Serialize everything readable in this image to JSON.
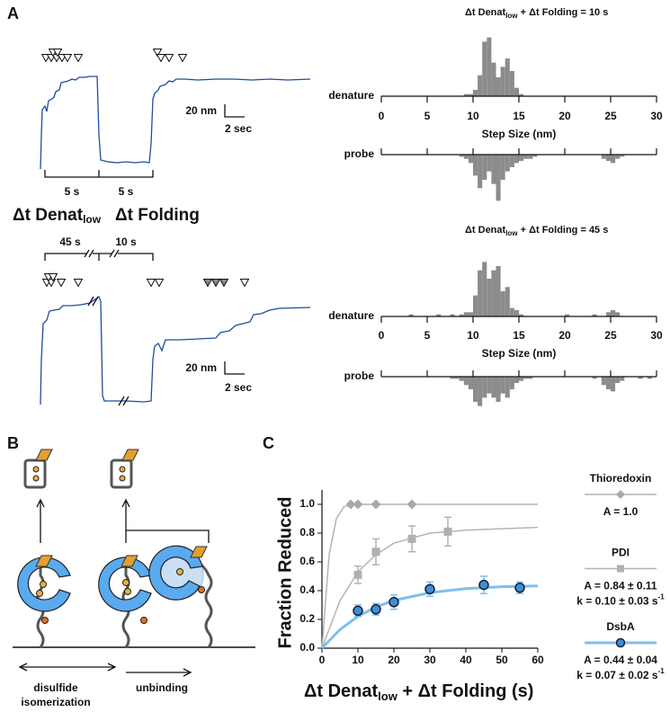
{
  "panel_labels": {
    "a": "A",
    "b": "B",
    "c": "C"
  },
  "traces": {
    "top": {
      "bracket_labels": [
        "5 s",
        "5 s"
      ],
      "scale_y": "20 nm",
      "scale_x": "2 sec",
      "interval_labels": {
        "denat": [
          "Δt Denat",
          "low"
        ],
        "folding": "Δt Folding"
      }
    },
    "bottom": {
      "bracket_labels": [
        "45 s",
        "10 s"
      ],
      "scale_y": "20 nm",
      "scale_x": "2 sec"
    }
  },
  "diagram": {
    "left_label": [
      "disulfide",
      "isomerization"
    ],
    "right_label": "unbinding"
  },
  "chart_data": [
    {
      "type": "histogram",
      "title_parts": [
        "Δt Denat",
        "low",
        " + Δt Folding = 10 s"
      ],
      "xlabel": "Step Size (nm)",
      "xlim": [
        0,
        30
      ],
      "xticks": [
        0,
        5,
        10,
        15,
        20,
        25,
        30
      ],
      "ylim": [
        0,
        30
      ],
      "color": "#8c8c8c",
      "bins": [
        0,
        0.5,
        1,
        1.5,
        2,
        2.5,
        3,
        3.5,
        4,
        4.5,
        5,
        5.5,
        6,
        6.5,
        7,
        7.5,
        8,
        8.5,
        9,
        9.5,
        10,
        10.5,
        11,
        11.5,
        12,
        12.5,
        13,
        13.5,
        14,
        14.5,
        15,
        15.5,
        16,
        16.5,
        17,
        17.5,
        18,
        18.5,
        19,
        19.5,
        20,
        20.5,
        21,
        21.5,
        22,
        22.5,
        23,
        23.5,
        24,
        24.5,
        25,
        25.5,
        26,
        26.5,
        27,
        27.5,
        28,
        28.5,
        29,
        29.5,
        30
      ],
      "series": [
        {
          "name": "denature",
          "values": [
            0,
            0,
            0,
            0,
            0,
            0,
            0,
            0,
            0,
            0,
            0,
            0,
            0,
            0,
            0,
            0,
            0,
            0,
            1,
            1,
            3,
            10,
            26,
            28,
            16,
            9,
            14,
            18,
            12,
            4,
            1,
            0,
            0,
            0,
            0,
            0,
            0,
            0,
            0,
            0,
            0,
            0,
            0,
            0,
            0,
            0,
            0,
            0,
            0,
            0,
            0,
            0,
            0,
            0,
            0,
            0,
            0,
            0,
            0,
            0
          ]
        },
        {
          "name": "probe",
          "values": [
            0,
            0,
            0,
            0,
            0,
            0,
            0,
            0,
            0,
            0,
            0,
            0,
            0,
            0,
            0,
            0,
            0,
            1,
            2,
            4,
            10,
            16,
            12,
            8,
            14,
            22,
            12,
            8,
            6,
            4,
            3,
            2,
            2,
            1,
            0,
            0,
            0,
            0,
            0,
            0,
            0,
            0,
            0,
            0,
            0,
            0,
            0,
            0,
            2,
            3,
            4,
            2,
            1,
            0,
            0,
            0,
            0,
            0,
            0,
            0
          ]
        }
      ]
    },
    {
      "type": "histogram",
      "title_parts": [
        "Δt Denat",
        "low",
        " + Δt Folding = 45 s"
      ],
      "xlabel": "Step Size (nm)",
      "xlim": [
        0,
        30
      ],
      "xticks": [
        0,
        5,
        10,
        15,
        20,
        25,
        30
      ],
      "ylim": [
        0,
        30
      ],
      "color": "#8c8c8c",
      "bins": [
        0,
        0.5,
        1,
        1.5,
        2,
        2.5,
        3,
        3.5,
        4,
        4.5,
        5,
        5.5,
        6,
        6.5,
        7,
        7.5,
        8,
        8.5,
        9,
        9.5,
        10,
        10.5,
        11,
        11.5,
        12,
        12.5,
        13,
        13.5,
        14,
        14.5,
        15,
        15.5,
        16,
        16.5,
        17,
        17.5,
        18,
        18.5,
        19,
        19.5,
        20,
        20.5,
        21,
        21.5,
        22,
        22.5,
        23,
        23.5,
        24,
        24.5,
        25,
        25.5,
        26,
        26.5,
        27,
        27.5,
        28,
        28.5,
        29,
        29.5,
        30
      ],
      "series": [
        {
          "name": "denature",
          "values": [
            0,
            0,
            0,
            0,
            0,
            0,
            1,
            0,
            0,
            0,
            0,
            0,
            1,
            0,
            0,
            1,
            0,
            1,
            2,
            2,
            10,
            22,
            26,
            18,
            22,
            24,
            12,
            14,
            4,
            3,
            1,
            0,
            0,
            0,
            0,
            0,
            0,
            0,
            0,
            0,
            1,
            0,
            0,
            0,
            0,
            0,
            1,
            0,
            0,
            2,
            3,
            2,
            0,
            0,
            0,
            0,
            0,
            0,
            0,
            0
          ]
        },
        {
          "name": "probe",
          "values": [
            0,
            0,
            0,
            0,
            0,
            0,
            0,
            0,
            0,
            0,
            0,
            0,
            0,
            0,
            0,
            1,
            1,
            2,
            4,
            6,
            12,
            14,
            10,
            8,
            10,
            12,
            8,
            10,
            6,
            3,
            2,
            1,
            1,
            0,
            0,
            0,
            0,
            0,
            0,
            0,
            0,
            0,
            0,
            0,
            0,
            0,
            1,
            0,
            4,
            6,
            7,
            3,
            2,
            0,
            0,
            0,
            1,
            0,
            1,
            0
          ]
        }
      ]
    },
    {
      "type": "scatter",
      "xlabel_parts": [
        "Δt Denat",
        "low",
        " + Δt Folding (s)"
      ],
      "ylabel": "Fraction Reduced",
      "xlim": [
        0,
        60
      ],
      "xticks": [
        0,
        10,
        20,
        30,
        40,
        50,
        60
      ],
      "ylim": [
        0,
        1.05
      ],
      "yticks": [
        {
          "value": 0,
          "label": "0.0"
        },
        {
          "value": 0.2,
          "label": "0.2"
        },
        {
          "value": 0.4,
          "label": "0.4"
        },
        {
          "value": 0.6,
          "label": "0.6"
        },
        {
          "value": 0.8,
          "label": "0.8"
        },
        {
          "value": 1,
          "label": "1.0"
        }
      ],
      "series": [
        {
          "name": "Thioredoxin",
          "color": "#b4b4b4",
          "marker_color": "#a8a8a8",
          "marker": "diamond",
          "line_width": 1.5,
          "x": [
            8,
            10,
            15,
            25
          ],
          "values": [
            1,
            1,
            1,
            1
          ],
          "fit_x": [
            0,
            2,
            4,
            6,
            8,
            60
          ],
          "fit_y": [
            0,
            0.65,
            0.9,
            0.98,
            1,
            1
          ],
          "params": [
            {
              "text": "A = 1.0"
            }
          ]
        },
        {
          "name": "PDI",
          "color": "#b4b4b4",
          "marker_color": "#b0b0b0",
          "marker": "square",
          "line_width": 1.5,
          "x": [
            10,
            15,
            25,
            35
          ],
          "values": [
            0.51,
            0.67,
            0.76,
            0.81
          ],
          "errors": [
            0.06,
            0.09,
            0.09,
            0.1
          ],
          "fit_x": [
            0,
            5,
            10,
            15,
            20,
            30,
            40,
            60
          ],
          "fit_y": [
            0,
            0.33,
            0.53,
            0.65,
            0.73,
            0.8,
            0.82,
            0.84
          ],
          "params": [
            {
              "text": "A = 0.84 ± 0.11"
            },
            {
              "text": "k = 0.10 ± 0.03 s",
              "sup": "-1"
            }
          ]
        },
        {
          "name": "DsbA",
          "color": "#7fbfec",
          "marker_color": "#3f8fd0",
          "marker": "circle",
          "line_width": 3,
          "x": [
            10,
            15,
            20,
            30,
            45,
            55
          ],
          "values": [
            0.26,
            0.27,
            0.32,
            0.41,
            0.44,
            0.42
          ],
          "errors": [
            0.04,
            0.04,
            0.05,
            0.05,
            0.06,
            0.04
          ],
          "fit_x": [
            0,
            5,
            10,
            15,
            20,
            30,
            40,
            50,
            60
          ],
          "fit_y": [
            0,
            0.129,
            0.221,
            0.286,
            0.332,
            0.386,
            0.414,
            0.427,
            0.433
          ],
          "params": [
            {
              "text": "A = 0.44 ± 0.04"
            },
            {
              "text": "k = 0.07 ± 0.02 s",
              "sup": "-1"
            }
          ]
        }
      ]
    }
  ]
}
